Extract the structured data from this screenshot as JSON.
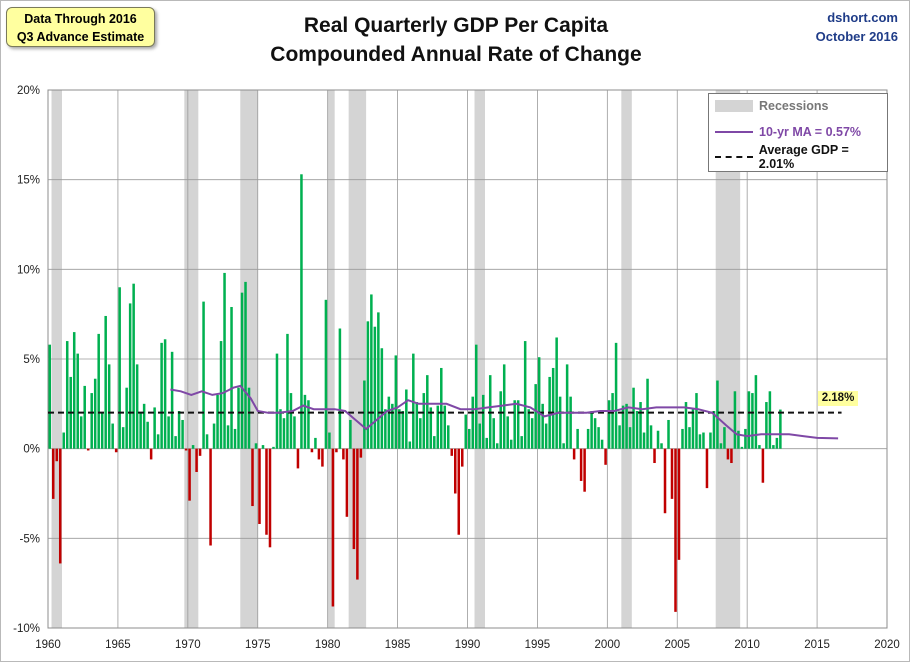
{
  "note": {
    "line1": "Data Through 2016",
    "line2": "Q3 Advance Estimate"
  },
  "source": {
    "line1": "dshort.com",
    "line2": "October 2016"
  },
  "title": {
    "line1": "Real Quarterly GDP Per Capita",
    "line2": "Compounded Annual Rate of Change"
  },
  "legend": {
    "recessions": "Recessions",
    "ma": "10-yr MA = 0.57%",
    "average": "Average GDP = 2.01%"
  },
  "last_value_label": "2.18%",
  "colors": {
    "positive": "#00b050",
    "negative": "#c00000",
    "recession": "#d4d4d4",
    "ma_line": "#7f48a6",
    "average_line": "#111111",
    "label_bg": "#ffff9f",
    "source_text": "#1f3c88"
  },
  "chart_data": {
    "type": "bar",
    "title": "Real Quarterly GDP Per Capita Compounded Annual Rate of Change",
    "xlim": [
      1960,
      2020
    ],
    "ylim": [
      -10,
      20
    ],
    "x_ticks": [
      "1960",
      "1965",
      "1970",
      "1975",
      "1980",
      "1985",
      "1990",
      "1995",
      "2000",
      "2005",
      "2010",
      "2015",
      "2020"
    ],
    "y_ticks": [
      "-10%",
      "-5%",
      "0%",
      "5%",
      "10%",
      "15%",
      "20%"
    ],
    "grid": true,
    "legend_position": "top-right",
    "recessions": [
      [
        1960.25,
        1961.0
      ],
      [
        1969.75,
        1970.75
      ],
      [
        1973.75,
        1975.0
      ],
      [
        1980.0,
        1980.5
      ],
      [
        1981.5,
        1982.75
      ],
      [
        1990.5,
        1991.25
      ],
      [
        2001.0,
        2001.75
      ],
      [
        2007.75,
        2009.5
      ]
    ],
    "average_gdp": 2.01,
    "ma_current": 0.57,
    "series": [
      {
        "name": "Real Quarterly GDP Per Capita",
        "start": 1960.0,
        "step": 0.25,
        "values": [
          5.8,
          -2.8,
          -0.7,
          -6.4,
          0.9,
          6.0,
          4.0,
          6.5,
          5.3,
          1.8,
          3.5,
          -0.1,
          3.1,
          3.9,
          6.4,
          2.0,
          7.4,
          4.7,
          1.4,
          -0.2,
          9.0,
          1.2,
          3.4,
          8.1,
          9.2,
          4.7,
          2.0,
          2.5,
          1.5,
          -0.6,
          2.3,
          0.8,
          5.9,
          6.1,
          1.8,
          5.4,
          0.7,
          2.1,
          1.6,
          -0.1,
          -2.9,
          0.2,
          -1.3,
          -0.4,
          8.2,
          0.8,
          -5.4,
          1.4,
          3.0,
          6.0,
          9.8,
          1.3,
          7.9,
          1.1,
          3.4,
          8.7,
          9.3,
          3.4,
          -3.2,
          0.3,
          -4.2,
          0.2,
          -4.8,
          -5.5,
          0.1,
          5.3,
          2.2,
          1.7,
          6.4,
          3.1,
          1.8,
          -1.1,
          15.3,
          3.0,
          2.7,
          -0.2,
          0.6,
          -0.6,
          -1.0,
          8.3,
          0.9,
          -8.8,
          -0.2,
          6.7,
          -0.6,
          -3.8,
          1.6,
          -5.6,
          -7.3,
          -0.5,
          3.8,
          7.1,
          8.6,
          6.8,
          7.6,
          5.6,
          2.2,
          2.9,
          2.5,
          5.2,
          2.2,
          2.1,
          3.3,
          0.4,
          5.3,
          2.6,
          1.7,
          3.1,
          4.1,
          2.3,
          0.7,
          2.4,
          4.5,
          2.4,
          1.3,
          -0.4,
          -2.5,
          -4.8,
          -1.0,
          1.9,
          1.1,
          2.9,
          5.8,
          1.4,
          3.0,
          0.6,
          4.1,
          1.7,
          0.3,
          3.2,
          4.7,
          1.8,
          0.5,
          2.7,
          2.7,
          0.7,
          6.0,
          2.2,
          1.7,
          3.6,
          5.1,
          2.5,
          1.4,
          4.0,
          4.5,
          6.2,
          2.9,
          0.3,
          4.7,
          2.9,
          -0.6,
          1.1,
          -1.8,
          -2.4,
          1.1,
          2.1,
          1.7,
          1.2,
          0.5,
          -0.9,
          2.7,
          3.1,
          5.9,
          1.3,
          2.4,
          2.5,
          1.2,
          3.4,
          2.1,
          2.6,
          0.9,
          3.9,
          1.3,
          -0.8,
          1.0,
          0.3,
          -3.6,
          1.6,
          -2.8,
          -9.1,
          -6.2,
          1.1,
          2.6,
          1.2,
          2.2,
          3.1,
          0.8,
          0.9,
          -2.2,
          0.9,
          2.1,
          3.8,
          0.3,
          1.2,
          -0.6,
          -0.8,
          3.2,
          1.0,
          0.1,
          1.1,
          3.2,
          3.1,
          4.1,
          0.2,
          -1.9,
          2.6,
          3.2,
          0.2,
          0.6,
          2.18
        ]
      },
      {
        "name": "10-yr MA",
        "points": [
          [
            1968.75,
            3.3
          ],
          [
            1969.5,
            3.2
          ],
          [
            1970.25,
            3.0
          ],
          [
            1971.0,
            3.2
          ],
          [
            1971.75,
            3.0
          ],
          [
            1972.5,
            3.1
          ],
          [
            1973.25,
            3.4
          ],
          [
            1973.75,
            3.5
          ],
          [
            1974.5,
            2.8
          ],
          [
            1975.0,
            2.1
          ],
          [
            1975.75,
            2.0
          ],
          [
            1976.5,
            2.0
          ],
          [
            1977.5,
            2.1
          ],
          [
            1978.25,
            2.4
          ],
          [
            1979.0,
            2.2
          ],
          [
            1979.75,
            2.2
          ],
          [
            1980.5,
            2.2
          ],
          [
            1981.25,
            2.1
          ],
          [
            1982.0,
            1.6
          ],
          [
            1982.75,
            1.1
          ],
          [
            1983.5,
            1.6
          ],
          [
            1984.25,
            2.1
          ],
          [
            1985.0,
            2.3
          ],
          [
            1985.75,
            2.7
          ],
          [
            1986.5,
            2.5
          ],
          [
            1987.5,
            2.5
          ],
          [
            1988.5,
            2.5
          ],
          [
            1989.5,
            2.2
          ],
          [
            1990.5,
            2.2
          ],
          [
            1991.5,
            2.3
          ],
          [
            1992.5,
            2.4
          ],
          [
            1993.5,
            2.5
          ],
          [
            1994.5,
            2.3
          ],
          [
            1995.5,
            1.8
          ],
          [
            1996.5,
            2.0
          ],
          [
            1997.5,
            2.0
          ],
          [
            1998.5,
            2.0
          ],
          [
            1999.5,
            2.1
          ],
          [
            2000.5,
            2.1
          ],
          [
            2001.5,
            2.3
          ],
          [
            2002.5,
            2.2
          ],
          [
            2003.5,
            2.3
          ],
          [
            2004.5,
            2.3
          ],
          [
            2005.5,
            2.3
          ],
          [
            2006.5,
            2.2
          ],
          [
            2007.5,
            2.0
          ],
          [
            2008.5,
            1.3
          ],
          [
            2009.25,
            0.8
          ],
          [
            2010.0,
            0.7
          ],
          [
            2011.0,
            0.8
          ],
          [
            2012.0,
            0.8
          ],
          [
            2013.0,
            0.8
          ],
          [
            2014.0,
            0.7
          ],
          [
            2015.0,
            0.6
          ],
          [
            2016.5,
            0.57
          ]
        ]
      }
    ]
  }
}
